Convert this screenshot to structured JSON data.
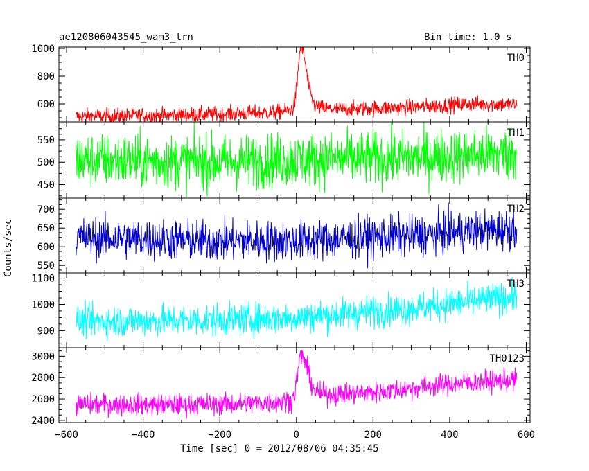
{
  "header": {
    "title": "ae120806043545_wam3_trn",
    "bin_time": "Bin time: 1.0 s"
  },
  "chart_data": {
    "type": "line",
    "xlabel": "Time [sec] 0 = 2012/08/06 04:35:45",
    "ylabel": "Counts/sec",
    "xlim": [
      -620,
      610
    ],
    "x_ticks": [
      -600,
      -400,
      -200,
      0,
      200,
      400,
      600
    ],
    "x_range_data": [
      -575,
      575
    ],
    "panels": [
      {
        "name": "TH0",
        "color": "#ff0000",
        "ylim": [
          470,
          1010
        ],
        "y_ticks": [
          600,
          800,
          1000
        ],
        "baseline": {
          "x": [
            -575,
            -400,
            -200,
            -50,
            0,
            40,
            100,
            300,
            450,
            575
          ],
          "y": [
            510,
            515,
            525,
            540,
            560,
            580,
            560,
            575,
            600,
            595
          ]
        },
        "noise": 28,
        "peak": {
          "x": 12,
          "amplitude": 440,
          "rise": 8,
          "decay": 14
        }
      },
      {
        "name": "TH1",
        "color": "#00ff00",
        "ylim": [
          420,
          590
        ],
        "y_ticks": [
          450,
          500,
          550
        ],
        "baseline": {
          "x": [
            -575,
            -200,
            0,
            300,
            575
          ],
          "y": [
            505,
            500,
            505,
            510,
            520
          ]
        },
        "noise": 30
      },
      {
        "name": "TH2",
        "color": "#0000cc",
        "ylim": [
          530,
          730
        ],
        "y_ticks": [
          550,
          600,
          650,
          700
        ],
        "baseline": {
          "x": [
            -575,
            -200,
            0,
            300,
            575
          ],
          "y": [
            625,
            615,
            615,
            630,
            650
          ]
        },
        "noise": 27
      },
      {
        "name": "TH3",
        "color": "#00ffff",
        "ylim": [
          835,
          1120
        ],
        "y_ticks": [
          900,
          1000,
          1100
        ],
        "baseline": {
          "x": [
            -575,
            -200,
            0,
            300,
            575
          ],
          "y": [
            935,
            940,
            950,
            985,
            1030
          ]
        },
        "noise": 30
      },
      {
        "name": "TH0123",
        "color": "#ff00ff",
        "ylim": [
          2380,
          3080
        ],
        "y_ticks": [
          2400,
          2600,
          2800,
          3000
        ],
        "baseline": {
          "x": [
            -575,
            -300,
            -100,
            0,
            60,
            200,
            400,
            575
          ],
          "y": [
            2550,
            2545,
            2560,
            2590,
            2640,
            2660,
            2740,
            2780
          ]
        },
        "noise": 50,
        "peak": {
          "x": 12,
          "amplitude": 400,
          "rise": 9,
          "decay": 18
        }
      }
    ]
  }
}
